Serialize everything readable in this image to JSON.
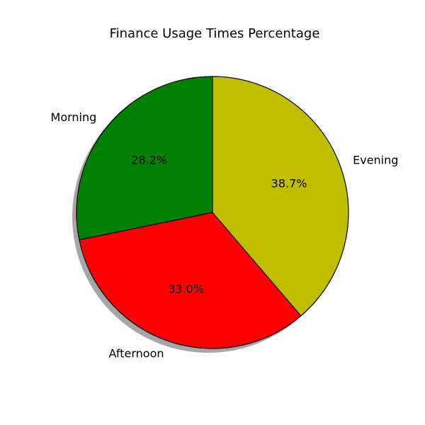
{
  "chart_data": {
    "type": "pie",
    "title": "Finance Usage Times Percentage",
    "categories": [
      "Morning",
      "Afternoon",
      "Evening"
    ],
    "values": [
      28.2,
      33.0,
      38.7
    ],
    "percent_labels": [
      "28.2%",
      "33.0%",
      "38.7%"
    ],
    "colors": [
      "#008000",
      "#ff0000",
      "#bfbf00"
    ],
    "start_angle": 90,
    "direction": "counterclockwise",
    "shadow": true,
    "legend": "none"
  }
}
